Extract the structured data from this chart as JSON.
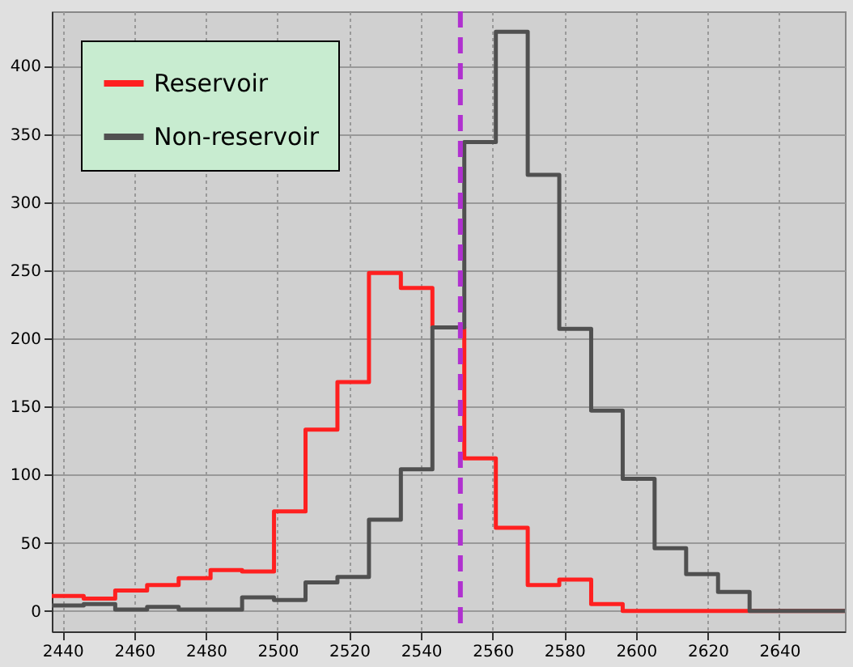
{
  "chart_data": {
    "type": "histogram",
    "bins": [
      2437.0,
      2445.9,
      2454.7,
      2463.6,
      2472.4,
      2481.3,
      2490.1,
      2499.0,
      2507.8,
      2516.7,
      2525.5,
      2534.4,
      2543.2,
      2552.1,
      2560.9,
      2569.8,
      2578.6,
      2587.5,
      2596.3,
      2605.2,
      2614.0,
      2622.9,
      2631.7,
      2640.6,
      2649.4,
      2658.3
    ],
    "series": [
      {
        "name": "Reservoir",
        "color": "#ff2020",
        "values": [
          11,
          9,
          15,
          19,
          24,
          30,
          29,
          73,
          133,
          168,
          248,
          237,
          208,
          112,
          61,
          19,
          23,
          5,
          0,
          0,
          0,
          0,
          0,
          0,
          0
        ]
      },
      {
        "name": "Non-reservoir",
        "color": "#505050",
        "values": [
          4,
          5,
          1,
          3,
          1,
          1,
          10,
          8,
          21,
          25,
          67,
          104,
          208,
          344,
          425,
          320,
          207,
          147,
          97,
          46,
          27,
          14,
          0,
          0,
          0
        ]
      }
    ],
    "xlim": [
      2437,
      2658.3
    ],
    "xticks": [
      2440,
      2460,
      2480,
      2500,
      2520,
      2540,
      2560,
      2580,
      2600,
      2620,
      2640
    ],
    "ylim": [
      -15,
      440
    ],
    "yticks": [
      0,
      50,
      100,
      150,
      200,
      250,
      300,
      350,
      400
    ],
    "ref_lines": [
      {
        "axis": "x",
        "value": 2551,
        "color": "#b030d0",
        "line_style": "dashed"
      }
    ],
    "grid": true,
    "legend": "top left"
  }
}
